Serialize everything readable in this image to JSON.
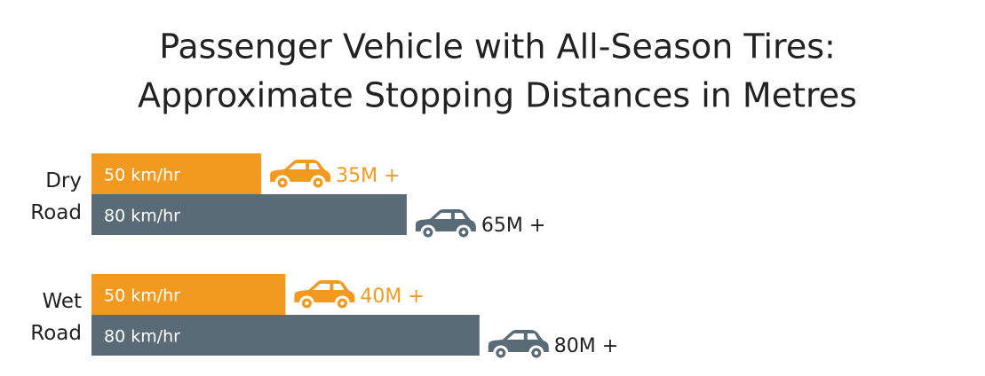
{
  "chart_data": {
    "type": "bar",
    "orientation": "horizontal",
    "title": [
      "Passenger Vehicle with All-Season Tires:",
      "Approximate Stopping Distances in Metres"
    ],
    "categories": [
      "Dry Road",
      "Wet Road"
    ],
    "series": [
      {
        "name": "50 km/hr",
        "color": "#f29a1f",
        "values": [
          35,
          40
        ],
        "value_labels": [
          "35M +",
          "40M +"
        ]
      },
      {
        "name": "80 km/hr",
        "color": "#5a6b78",
        "values": [
          65,
          80
        ],
        "value_labels": [
          "65M +",
          "80M +"
        ]
      }
    ]
  }
}
